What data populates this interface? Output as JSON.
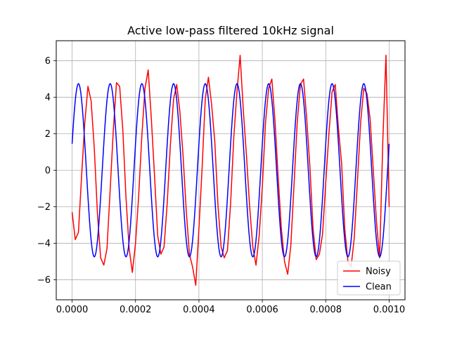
{
  "chart_data": {
    "type": "line",
    "title": "Active low-pass filtered 10kHz signal",
    "xlabel": "",
    "ylabel": "",
    "xlim": [
      -5e-05,
      0.00105
    ],
    "ylim": [
      -7.1,
      7.1
    ],
    "x_ticks": [
      0.0,
      0.0002,
      0.0004,
      0.0006,
      0.0008,
      0.001
    ],
    "x_tick_labels": [
      "0.0000",
      "0.0002",
      "0.0004",
      "0.0006",
      "0.0008",
      "0.0010"
    ],
    "y_ticks": [
      -6,
      -4,
      -2,
      0,
      2,
      4,
      6
    ],
    "y_tick_labels": [
      "−6",
      "−4",
      "−2",
      "0",
      "2",
      "4",
      "6"
    ],
    "grid": true,
    "legend_position": "lower-right",
    "series": [
      {
        "name": "Noisy",
        "color": "#ff0000",
        "x": [
          0.0,
          1e-05,
          2e-05,
          3e-05,
          4e-05,
          5e-05,
          6e-05,
          7e-05,
          8e-05,
          9e-05,
          0.0001,
          0.00011,
          0.00012,
          0.00013,
          0.00014,
          0.00015,
          0.00016,
          0.00017,
          0.00018,
          0.00019,
          0.0002,
          0.00021,
          0.00022,
          0.00023,
          0.00024,
          0.00025,
          0.00026,
          0.00027,
          0.00028,
          0.00029,
          0.0003,
          0.00031,
          0.00032,
          0.00033,
          0.00034,
          0.00035,
          0.00036,
          0.00037,
          0.00038,
          0.00039,
          0.0004,
          0.00041,
          0.00042,
          0.00043,
          0.00044,
          0.00045,
          0.00046,
          0.00047,
          0.00048,
          0.00049,
          0.0005,
          0.00051,
          0.00052,
          0.00053,
          0.00054,
          0.00055,
          0.00056,
          0.00057,
          0.00058,
          0.00059,
          0.0006,
          0.00061,
          0.00062,
          0.00063,
          0.00064,
          0.00065,
          0.00066,
          0.00067,
          0.00068,
          0.00069,
          0.0007,
          0.00071,
          0.00072,
          0.00073,
          0.00074,
          0.00075,
          0.00076,
          0.00077,
          0.00078,
          0.00079,
          0.0008,
          0.00081,
          0.00082,
          0.00083,
          0.00084,
          0.00085,
          0.00086,
          0.00087,
          0.00088,
          0.00089,
          0.0009,
          0.00091,
          0.00092,
          0.00093,
          0.00094,
          0.00095,
          0.00096,
          0.00097,
          0.00098,
          0.00099,
          0.001
        ],
        "values": [
          -2.3,
          -3.8,
          -3.4,
          -0.3,
          2.6,
          4.6,
          3.8,
          1.2,
          -2.4,
          -4.8,
          -5.2,
          -4.3,
          -1.1,
          2.2,
          4.8,
          4.6,
          2.2,
          -1.5,
          -4.3,
          -5.6,
          -4.0,
          -1.4,
          1.9,
          4.5,
          5.5,
          2.8,
          -0.3,
          -3.6,
          -4.6,
          -4.2,
          -1.8,
          1.4,
          3.9,
          4.7,
          3.2,
          0.8,
          -2.2,
          -4.6,
          -5.3,
          -6.3,
          -3.2,
          0.1,
          3.9,
          5.1,
          3.6,
          1.6,
          -1.9,
          -4.2,
          -4.8,
          -4.4,
          -1.8,
          1.8,
          4.3,
          6.3,
          3.3,
          0.8,
          -2.0,
          -4.2,
          -5.2,
          -3.6,
          -0.9,
          2.6,
          4.5,
          5.0,
          2.7,
          -0.4,
          -3.2,
          -5.0,
          -5.7,
          -4.1,
          -0.8,
          2.6,
          4.7,
          5.0,
          2.8,
          0.2,
          -3.2,
          -4.9,
          -4.6,
          -3.5,
          -0.7,
          2.0,
          4.3,
          4.7,
          2.3,
          0.4,
          -3.2,
          -5.0,
          -5.3,
          -3.7,
          -0.6,
          2.6,
          4.5,
          4.2,
          2.8,
          0.0,
          -2.8,
          -4.8,
          1.6,
          6.3,
          -2.0
        ]
      },
      {
        "name": "Clean",
        "color": "#0000ff",
        "function": "4.75*sin(2*pi*10000*t + 0.31)",
        "samples": 401
      }
    ]
  }
}
